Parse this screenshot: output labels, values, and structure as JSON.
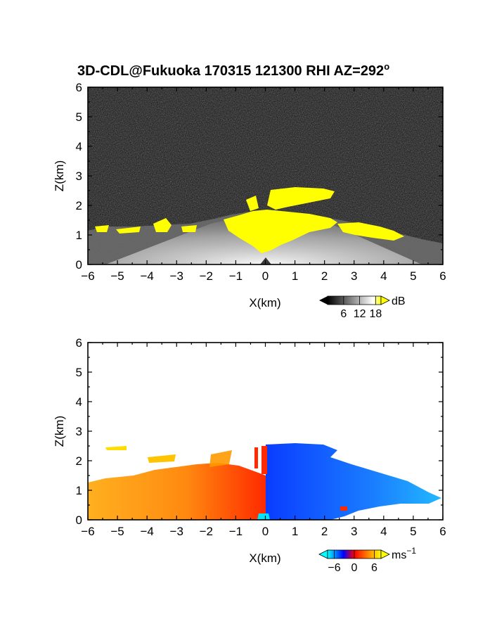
{
  "title": "3D-CDL@Fukuoka 170315 121300 RHI AZ=292",
  "title_superscript": "o",
  "chart_data": [
    {
      "type": "heatmap",
      "name": "snr-panel",
      "xlabel": "X(km)",
      "ylabel": "Z(km)",
      "xlim": [
        -6,
        6
      ],
      "ylim": [
        0,
        6
      ],
      "xticks": [
        "-6",
        "-5",
        "-4",
        "-3",
        "-2",
        "-1",
        "0",
        "1",
        "2",
        "3",
        "4",
        "5",
        "6"
      ],
      "yticks": [
        "0",
        "1",
        "2",
        "3",
        "4",
        "5",
        "6"
      ],
      "background": "noise",
      "colorbar": {
        "unit": "dB",
        "ticks": [
          "6",
          "12",
          "18"
        ],
        "tick_values": [
          6,
          12,
          18
        ],
        "range": [
          0,
          20
        ],
        "colors": [
          "#000000",
          "#ffffff",
          "#ffff00"
        ]
      },
      "regions": [
        {
          "x_range": [
            -6.0,
            6.0
          ],
          "z_top_profile": [
            [
              -6,
              1.15
            ],
            [
              -4.5,
              1.25
            ],
            [
              -3,
              1.2
            ],
            [
              -2,
              1.3
            ],
            [
              -1,
              1.6
            ],
            [
              0,
              1.65
            ],
            [
              1,
              1.6
            ],
            [
              2,
              1.3
            ],
            [
              3,
              1.2
            ],
            [
              4,
              1.1
            ],
            [
              5,
              0.95
            ],
            [
              6,
              0.7
            ]
          ],
          "value_dB": 9
        },
        {
          "x_center": 0.0,
          "z_top": 0.5,
          "value_dB": 18
        }
      ]
    },
    {
      "type": "heatmap",
      "name": "velocity-panel",
      "xlabel": "X(km)",
      "ylabel": "Z(km)",
      "xlim": [
        -6,
        6
      ],
      "ylim": [
        0,
        6
      ],
      "xticks": [
        "-6",
        "-5",
        "-4",
        "-3",
        "-2",
        "-1",
        "0",
        "1",
        "2",
        "3",
        "4",
        "5",
        "6"
      ],
      "yticks": [
        "0",
        "1",
        "2",
        "3",
        "4",
        "5",
        "6"
      ],
      "background": "#ffffff",
      "colorbar": {
        "unit": "ms",
        "unit_superscript": "−1",
        "ticks": [
          "−6",
          "0",
          "6"
        ],
        "tick_values": [
          -6,
          0,
          6
        ],
        "range": [
          -8,
          8
        ],
        "colors": [
          "#00ffff",
          "#0000ff",
          "#ff0000",
          "#ffff00"
        ]
      },
      "regions": [
        {
          "x_range": [
            -6.0,
            0.0
          ],
          "velocity": 4
        },
        {
          "x_range": [
            0.0,
            6.0
          ],
          "velocity": -5
        }
      ]
    }
  ]
}
